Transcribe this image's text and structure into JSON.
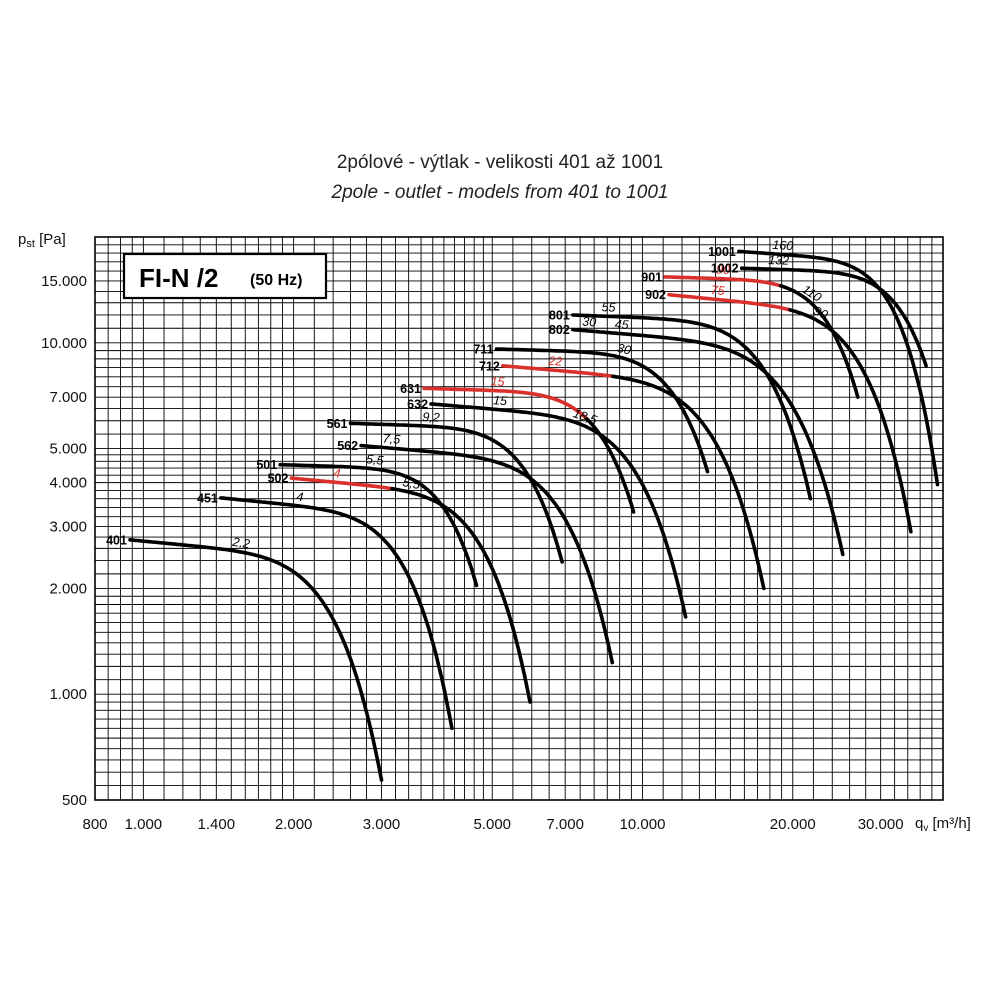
{
  "title": "2pólové - výtlak - velikosti 401 až 1001",
  "subtitle": "2pole - outlet - models from 401 to 1001",
  "badge": {
    "main": "FI-N /2",
    "sub": "(50 Hz)"
  },
  "colors": {
    "normal": "#000000",
    "highlight": "#d9302b",
    "grid": "#000000"
  },
  "chart_data": {
    "type": "line",
    "xscale": "log",
    "yscale": "log",
    "xlim": [
      800,
      40000
    ],
    "ylim": [
      500,
      20000
    ],
    "xlabel": {
      "base": "q",
      "sub": "v",
      "unit": " [m³/h]"
    },
    "ylabel": {
      "base": "p",
      "sub": "st",
      "unit": " [Pa]"
    },
    "xticks": [
      {
        "v": 800,
        "label": "800"
      },
      {
        "v": 1000,
        "label": "1.000"
      },
      {
        "v": 1400,
        "label": "1.400"
      },
      {
        "v": 2000,
        "label": "2.000"
      },
      {
        "v": 3000,
        "label": "3.000"
      },
      {
        "v": 5000,
        "label": "5.000"
      },
      {
        "v": 7000,
        "label": "7.000"
      },
      {
        "v": 10000,
        "label": "10.000"
      },
      {
        "v": 20000,
        "label": "20.000"
      },
      {
        "v": 30000,
        "label": "30.000"
      }
    ],
    "yticks": [
      {
        "v": 500,
        "label": "500"
      },
      {
        "v": 1000,
        "label": "1.000"
      },
      {
        "v": 2000,
        "label": "2.000"
      },
      {
        "v": 3000,
        "label": "3.000"
      },
      {
        "v": 4000,
        "label": "4.000"
      },
      {
        "v": 5000,
        "label": "5.000"
      },
      {
        "v": 7000,
        "label": "7.000"
      },
      {
        "v": 10000,
        "label": "10.000"
      },
      {
        "v": 15000,
        "label": "15.000"
      }
    ],
    "series": [
      {
        "name": "401",
        "x0": 940,
        "y0": 2750,
        "xe": 3000,
        "ye": 570,
        "a": 0.1,
        "b": 6,
        "powers": [
          {
            "label": "2,2",
            "t": 0.44
          }
        ]
      },
      {
        "name": "451",
        "x0": 1430,
        "y0": 3620,
        "xe": 4150,
        "ye": 800,
        "a": 0.1,
        "b": 6,
        "powers": [
          {
            "label": "4",
            "t": 0.34
          }
        ]
      },
      {
        "name": "501",
        "x0": 1880,
        "y0": 4500,
        "xe": 4650,
        "ye": 2040,
        "a": 0.05,
        "b": 6,
        "powers": [
          {
            "label": "5,5",
            "t": 0.48
          }
        ]
      },
      {
        "name": "502",
        "x0": 1980,
        "y0": 4120,
        "xe": 5950,
        "ye": 950,
        "a": 0.1,
        "b": 6,
        "highlight_until": 0.42,
        "powers": [
          {
            "label": "4",
            "t": 0.19,
            "red": true
          },
          {
            "label": "5,5",
            "t": 0.5
          }
        ]
      },
      {
        "name": "561",
        "x0": 2600,
        "y0": 5900,
        "xe": 6900,
        "ye": 2380,
        "a": 0.05,
        "b": 6,
        "powers": [
          {
            "label": "9,2",
            "t": 0.38
          }
        ]
      },
      {
        "name": "562",
        "x0": 2730,
        "y0": 5100,
        "xe": 8700,
        "ye": 1230,
        "a": 0.1,
        "b": 6,
        "powers": [
          {
            "label": "7,5",
            "t": 0.12
          }
        ]
      },
      {
        "name": "631",
        "x0": 3650,
        "y0": 7420,
        "xe": 9600,
        "ye": 3300,
        "a": 0.05,
        "b": 6,
        "highlight_until": 0.78,
        "powers": [
          {
            "label": "15",
            "t": 0.35,
            "red": true
          }
        ]
      },
      {
        "name": "632",
        "x0": 3770,
        "y0": 6700,
        "xe": 12200,
        "ye": 1660,
        "a": 0.1,
        "b": 6,
        "powers": [
          {
            "label": "15",
            "t": 0.27
          },
          {
            "label": "18,5",
            "t": 0.6
          }
        ]
      },
      {
        "name": "711",
        "x0": 5100,
        "y0": 9600,
        "xe": 13500,
        "ye": 4300,
        "a": 0.05,
        "b": 6,
        "powers": [
          {
            "label": "30",
            "t": 0.6
          }
        ]
      },
      {
        "name": "712",
        "x0": 5250,
        "y0": 8600,
        "xe": 17500,
        "ye": 2000,
        "a": 0.1,
        "b": 6,
        "highlight_until": 0.42,
        "powers": [
          {
            "label": "22",
            "t": 0.2,
            "red": true
          }
        ]
      },
      {
        "name": "801",
        "x0": 7250,
        "y0": 12000,
        "xe": 21700,
        "ye": 3600,
        "a": 0.05,
        "b": 6,
        "powers": [
          {
            "label": "55",
            "t": 0.15
          }
        ]
      },
      {
        "name": "802",
        "x0": 7250,
        "y0": 10900,
        "xe": 25200,
        "ye": 2500,
        "a": 0.1,
        "b": 6,
        "powers": [
          {
            "label": "30",
            "t": 0.06
          },
          {
            "label": "45",
            "t": 0.18
          }
        ]
      },
      {
        "name": "901",
        "x0": 11100,
        "y0": 15400,
        "xe": 27000,
        "ye": 7000,
        "a": 0.05,
        "b": 6,
        "highlight_until": 0.6,
        "powers": [
          {
            "label": "90",
            "t": 0.3,
            "red": true
          },
          {
            "label": "110",
            "t": 0.75
          }
        ]
      },
      {
        "name": "902",
        "x0": 11300,
        "y0": 13700,
        "xe": 34500,
        "ye": 2900,
        "a": 0.1,
        "b": 6,
        "highlight_until": 0.5,
        "powers": [
          {
            "label": "75",
            "t": 0.2,
            "red": true
          },
          {
            "label": "90",
            "t": 0.62
          }
        ]
      },
      {
        "name": "1001",
        "x0": 15600,
        "y0": 18200,
        "xe": 39000,
        "ye": 3950,
        "a": 0.06,
        "b": 6,
        "powers": [
          {
            "label": "160",
            "t": 0.22
          }
        ]
      },
      {
        "name": "1002",
        "x0": 15800,
        "y0": 16300,
        "xe": 37000,
        "ye": 8600,
        "a": 0.06,
        "b": 6,
        "powers": [
          {
            "label": "132",
            "t": 0.2
          }
        ]
      }
    ]
  }
}
